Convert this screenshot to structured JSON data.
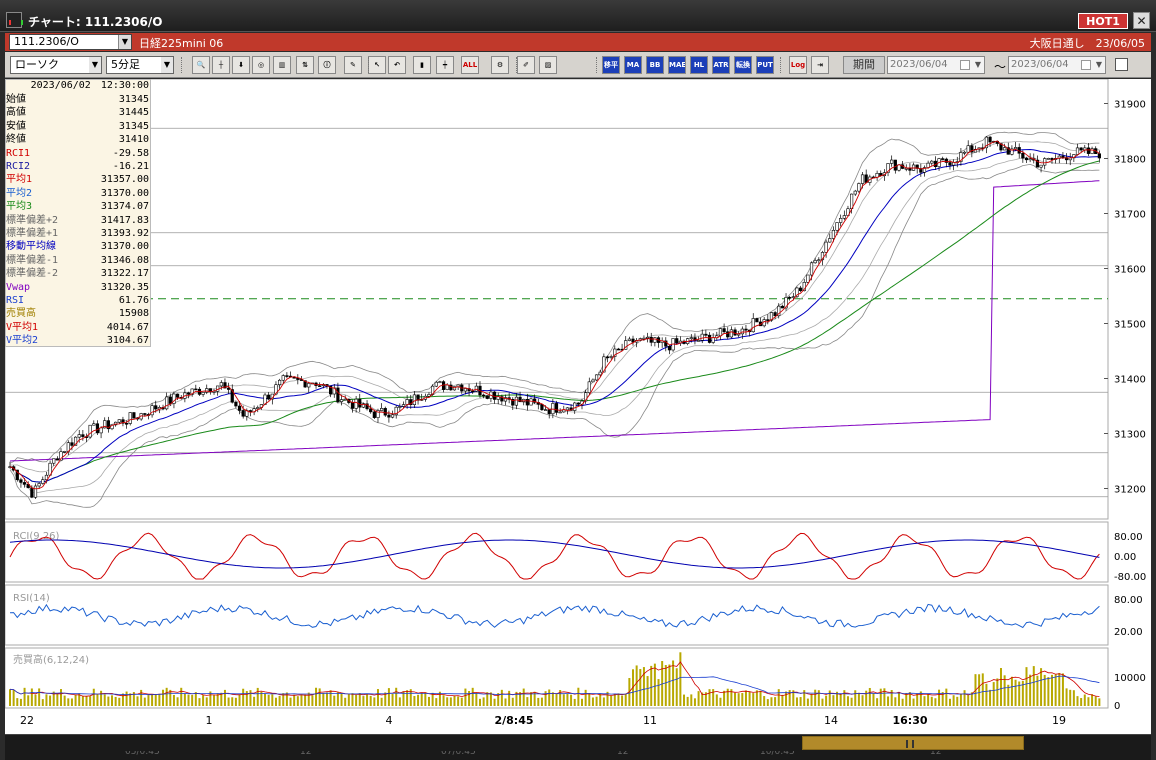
{
  "window": {
    "title": "チャート: 111.2306/O",
    "hot_label": "HOT1",
    "close_label": "✕"
  },
  "symbol_bar": {
    "symbol": "111.2306/O",
    "name": "日経225mini 06",
    "market_info": "大阪日通し　23/06/05"
  },
  "toolbar": {
    "chart_type": "ローソク",
    "interval": "5分足",
    "buttons": [
      {
        "name": "zoom-icon",
        "label": "🔍"
      },
      {
        "name": "crosshair-icon",
        "label": "┼"
      },
      {
        "name": "down-arrow-icon",
        "label": "⬇"
      },
      {
        "name": "target-icon",
        "label": "◎"
      },
      {
        "name": "chart-icon",
        "label": "▥"
      },
      {
        "name": "compare-icon",
        "label": "⇅"
      },
      {
        "name": "info-icon",
        "label": "ⓘ"
      },
      {
        "name": "pen-icon",
        "label": "✎"
      },
      {
        "name": "cursor-icon",
        "label": "↖"
      },
      {
        "name": "undo-icon",
        "label": "↶"
      },
      {
        "name": "candle-icon",
        "label": "▮"
      },
      {
        "name": "bar-icon",
        "label": "┿"
      },
      {
        "name": "all-button",
        "label": "ALL"
      },
      {
        "name": "gear-icon",
        "label": "⚙"
      },
      {
        "name": "brush-icon",
        "label": "✐"
      },
      {
        "name": "palette-icon",
        "label": "▨"
      }
    ],
    "indicator_buttons": [
      "移平",
      "MA",
      "BB",
      "MAE",
      "HL",
      "ATR",
      "転換",
      "PUT"
    ],
    "log_label": "Log",
    "period_label": "期間",
    "date_from": "2023/06/04",
    "date_to": "2023/06/04",
    "tilde": "〜"
  },
  "infobox": {
    "datetime": "2023/06/02　12:30:00",
    "rows": [
      {
        "label": "始値",
        "value": "31345",
        "color": "#000000"
      },
      {
        "label": "高値",
        "value": "31445",
        "color": "#000000"
      },
      {
        "label": "安値",
        "value": "31345",
        "color": "#000000"
      },
      {
        "label": "終値",
        "value": "31410",
        "color": "#000000"
      },
      {
        "label": "RCI1",
        "value": "-29.58",
        "color": "#d00000"
      },
      {
        "label": "RCI2",
        "value": "-16.21",
        "color": "#1a1aa0"
      },
      {
        "label": "平均1",
        "value": "31357.00",
        "color": "#d00000"
      },
      {
        "label": "平均2",
        "value": "31370.00",
        "color": "#1a5fd0"
      },
      {
        "label": "平均3",
        "value": "31374.07",
        "color": "#1a8a1a"
      },
      {
        "label": "標準偏差+2",
        "value": "31417.83",
        "color": "#666666"
      },
      {
        "label": "標準偏差+1",
        "value": "31393.92",
        "color": "#666666"
      },
      {
        "label": "移動平均線",
        "value": "31370.00",
        "color": "#0000c0"
      },
      {
        "label": "標準偏差-1",
        "value": "31346.08",
        "color": "#666666"
      },
      {
        "label": "標準偏差-2",
        "value": "31322.17",
        "color": "#666666"
      },
      {
        "label": "Vwap",
        "value": "31320.35",
        "color": "#8000c0"
      },
      {
        "label": "RSI",
        "value": "61.76",
        "color": "#1a3fd0"
      },
      {
        "label": "売買高",
        "value": "15908",
        "color": "#a08000"
      },
      {
        "label": "V平均1",
        "value": "4014.67",
        "color": "#d00000"
      },
      {
        "label": "V平均2",
        "value": "3104.67",
        "color": "#1a3fd0"
      }
    ]
  },
  "price_axis": {
    "ticks": [
      {
        "label": "31900",
        "value": 31900
      },
      {
        "label": "31800",
        "value": 31800
      },
      {
        "label": "31700",
        "value": 31700
      },
      {
        "label": "31600",
        "value": 31600
      },
      {
        "label": "31500",
        "value": 31500
      },
      {
        "label": "31400",
        "value": 31400
      },
      {
        "label": "31300",
        "value": 31300
      },
      {
        "label": "31200",
        "value": 31200
      }
    ]
  },
  "panels": {
    "rci_label": "RCI(9,26)",
    "rci_ticks": [
      "80.00",
      "0.00",
      "-80.00"
    ],
    "rsi_label": "RSI(14)",
    "rsi_ticks": [
      "80.00",
      "20.00"
    ],
    "vol_label": "売買高(6,12,24)",
    "vol_ticks": [
      "10000",
      "0"
    ]
  },
  "time_axis": {
    "labels": [
      {
        "text": "22",
        "bold": false
      },
      {
        "text": "1",
        "bold": false
      },
      {
        "text": "4",
        "bold": false
      },
      {
        "text": "2/8:45",
        "bold": true
      },
      {
        "text": "11",
        "bold": false
      },
      {
        "text": "14",
        "bold": false
      },
      {
        "text": "16:30",
        "bold": true
      },
      {
        "text": "19",
        "bold": false
      }
    ]
  },
  "overview_labels": [
    "05/0:45",
    "12",
    "07/0:45",
    "12",
    "10/0:45",
    "12"
  ],
  "chart_data": {
    "type": "candlestick",
    "ylim": [
      31150,
      31930
    ],
    "dashed_level": 31545,
    "horizontal_levels": [
      31855,
      31665,
      31605,
      31375,
      31265,
      31185
    ],
    "colors": {
      "up": "#000000",
      "down": "#000000",
      "ma1": "#d00000",
      "ma2": "#0000c0",
      "ma3": "#1a8a1a",
      "vwap": "#8000c0",
      "band": "#777777",
      "rsi": "#1a5fd0",
      "volume": "#b8a800"
    }
  }
}
